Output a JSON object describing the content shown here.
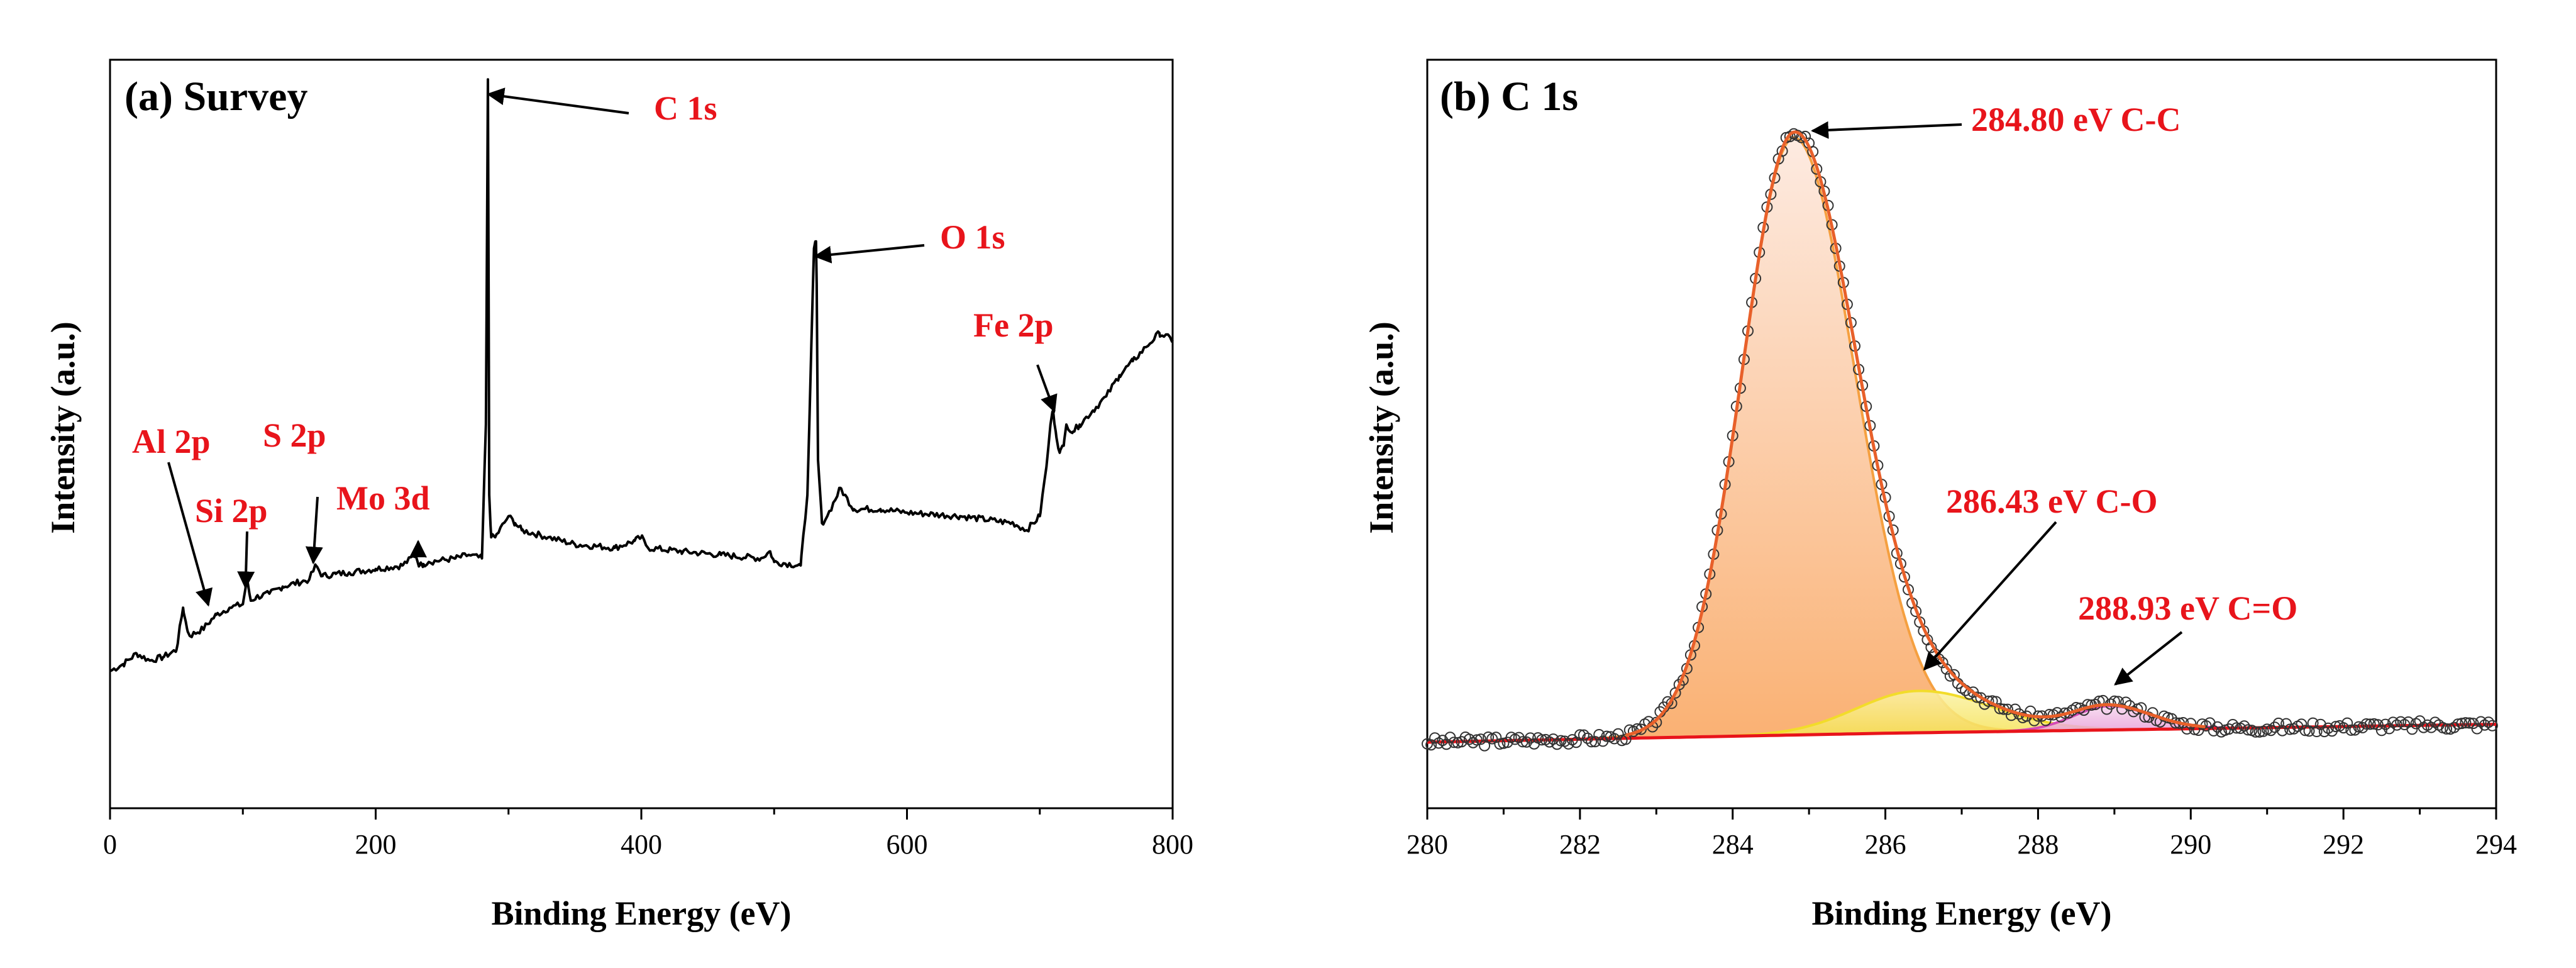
{
  "chart_data": [
    {
      "type": "line",
      "title": "(a) Survey",
      "xlabel": "Binding Energy (eV)",
      "ylabel": "Intensity (a.u.)",
      "xlim": [
        0,
        800
      ],
      "ylim": [
        0,
        100
      ],
      "xticks": [
        "0",
        "200",
        "400",
        "600",
        "800"
      ],
      "y_ticks_shown": false,
      "series": [
        {
          "name": "Survey spectrum",
          "color": "#000000",
          "x": [
            0,
            10,
            20,
            25,
            30,
            40,
            50,
            55,
            58,
            60,
            70,
            80,
            90,
            100,
            103,
            106,
            110,
            120,
            130,
            140,
            150,
            155,
            160,
            170,
            180,
            200,
            220,
            230,
            233,
            236,
            240,
            260,
            270,
            280,
            283,
            284.5,
            285,
            285.5,
            287,
            290,
            300,
            305,
            310,
            330,
            350,
            380,
            395,
            400,
            405,
            430,
            460,
            490,
            497,
            500,
            520,
            525,
            530,
            531.5,
            532,
            533,
            536,
            540,
            550,
            553,
            560,
            580,
            600,
            640,
            680,
            690,
            700,
            705,
            708,
            710,
            712,
            715,
            718,
            720,
            725,
            730,
            740,
            750,
            760,
            770,
            780,
            790,
            800
          ],
          "values": [
            15,
            16,
            17.5,
            17,
            16.5,
            17,
            18,
            24,
            21,
            20,
            21,
            23,
            24,
            24.5,
            28,
            25,
            25.5,
            26,
            27,
            27.5,
            28,
            30,
            28.5,
            28.8,
            29,
            29.5,
            30,
            31.5,
            30,
            30.2,
            30.5,
            31,
            31.5,
            31,
            50,
            99,
            70,
            40,
            34,
            34,
            37,
            36,
            35,
            34,
            33,
            32.5,
            33.5,
            34,
            32.5,
            32,
            31.5,
            31,
            32,
            30.5,
            30,
            40,
            75,
            76,
            70,
            45,
            36,
            37,
            41,
            40,
            38,
            38,
            37.5,
            37,
            36,
            35,
            37,
            44,
            50,
            52,
            49,
            46,
            47,
            50,
            49,
            50,
            52,
            54,
            57,
            59,
            61,
            63,
            62
          ]
        }
      ],
      "annotations": [
        {
          "text": "C 1s",
          "x": 284.8
        },
        {
          "text": "O  1s",
          "x": 531
        },
        {
          "text": "Fe  2p",
          "x": 711
        },
        {
          "text": "Al 2p",
          "x": 74
        },
        {
          "text": "Si 2p",
          "x": 102
        },
        {
          "text": "S 2p",
          "x": 153
        },
        {
          "text": "Mo 3d",
          "x": 232
        }
      ]
    },
    {
      "type": "line",
      "title": "(b) C 1s",
      "xlabel": "Binding Energy (eV)",
      "ylabel": "Intensity (a.u.)",
      "xlim": [
        280,
        294
      ],
      "ylim": [
        0,
        100
      ],
      "xticks": [
        "280",
        "282",
        "284",
        "286",
        "288",
        "290",
        "292",
        "294"
      ],
      "y_ticks_shown": false,
      "baseline": {
        "x": [
          280,
          286,
          294
        ],
        "values": [
          0,
          1.5,
          3
        ]
      },
      "components": [
        {
          "name": "C-C",
          "label": "284.80 eV C-C",
          "center": 284.8,
          "height": 100,
          "fwhm": 1.6,
          "color": "#f5a040"
        },
        {
          "name": "C-O",
          "label": "286.43 eV C-O",
          "center": 286.43,
          "height": 7,
          "fwhm": 1.9,
          "color": "#f2dc2a"
        },
        {
          "name": "C=O",
          "label": "288.93 eV C=O",
          "center": 288.93,
          "height": 4,
          "fwhm": 1.1,
          "color": "#d44bb7"
        }
      ],
      "series": [
        {
          "name": "Measured data",
          "marker": "open-circle",
          "color": "#333333"
        },
        {
          "name": "Envelope fit",
          "color": "#e8602a"
        },
        {
          "name": "Background",
          "color": "#e8141b"
        }
      ],
      "annotations": [
        {
          "text": "284.80 eV C-C",
          "x": 284.8
        },
        {
          "text": "286.43 eV C-O",
          "x": 286.43
        },
        {
          "text": "288.93 eV C=O",
          "x": 288.93
        }
      ]
    }
  ]
}
